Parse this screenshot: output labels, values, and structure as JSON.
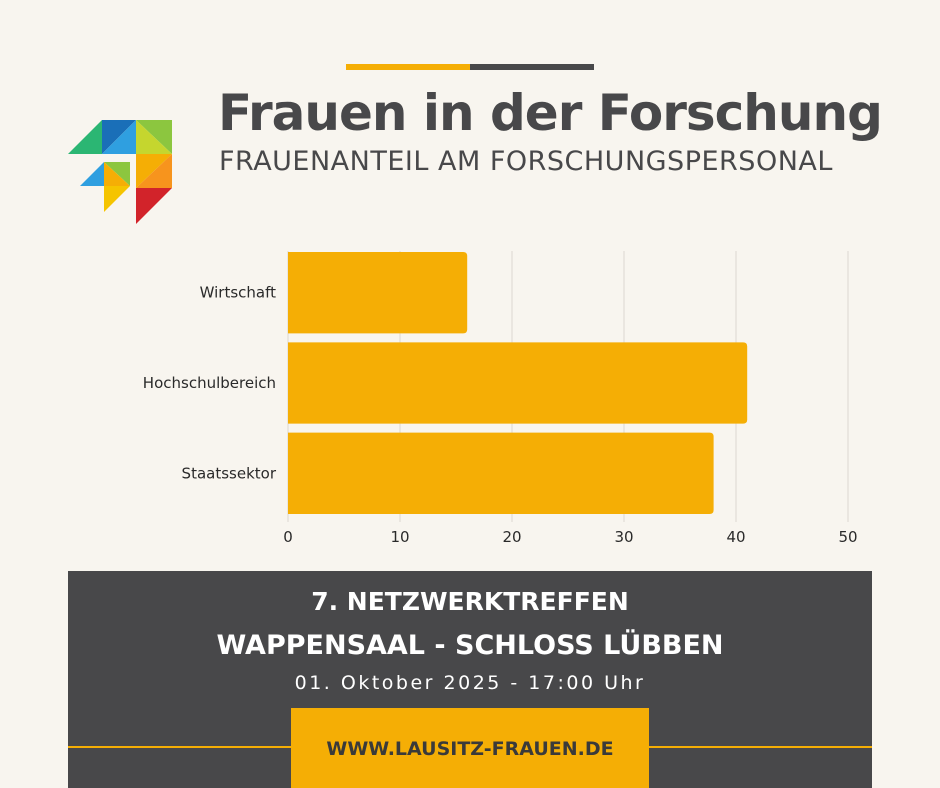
{
  "header": {
    "title": "Frauen in der Forschung",
    "subtitle": "FRAUENANTEIL AM FORSCHUNGSPERSONAL"
  },
  "colors": {
    "background": "#f8f5ef",
    "accent_yellow": "#f5ae05",
    "dark_grey": "#48484a",
    "panel": "#48484a",
    "grid": "#dcd8d0"
  },
  "logo": {
    "icon": "colorful-triangle-mosaic-logo"
  },
  "chart_data": {
    "type": "bar",
    "orientation": "horizontal",
    "categories": [
      "Wirtschaft",
      "Hochschulbereich",
      "Staatssektor"
    ],
    "values": [
      16,
      41,
      38
    ],
    "xlim": [
      0,
      50
    ],
    "xticks": [
      "0",
      "10",
      "20",
      "30",
      "40",
      "50"
    ],
    "grid": true,
    "legend": "none",
    "bar_color": "#f5ae05"
  },
  "event": {
    "line1": "7. NETZWERKTREFFEN",
    "line2": "WAPPENSAAL - SCHLOSS LÜBBEN",
    "line3": "01. Oktober 2025 - 17:00 Uhr",
    "url": "WWW.LAUSITZ-FRAUEN.DE"
  }
}
